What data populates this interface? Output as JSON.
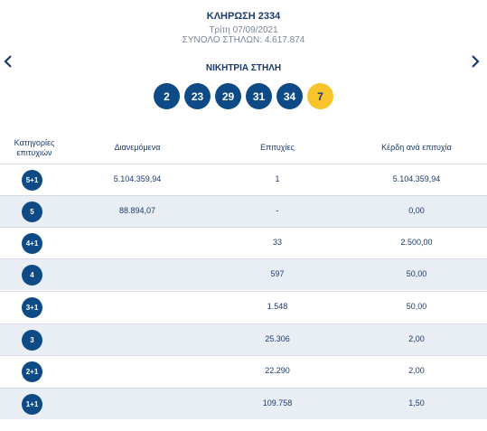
{
  "draw": {
    "title": "ΚΛΗΡΩΣΗ 2334",
    "date": "Τρίτη 07/09/2021",
    "columns": "ΣΥΝΟΛΟ ΣΤΗΛΩΝ: 4.617.874"
  },
  "winning": {
    "title": "ΝΙΚΗΤΡΙΑ ΣΤΗΛΗ",
    "numbers": [
      "2",
      "23",
      "29",
      "31",
      "34"
    ],
    "joker": "7"
  },
  "table": {
    "headers": {
      "category": "Κατηγορίες επιτυχιών",
      "distributed": "Διανεμόμενα",
      "winners": "Επιτυχίες",
      "prize": "Κέρδη ανά επιτυχία"
    },
    "rows": [
      {
        "category": "5+1",
        "distributed": "5.104.359,94",
        "winners": "1",
        "prize": "5.104.359,94"
      },
      {
        "category": "5",
        "distributed": "88.894,07",
        "winners": "-",
        "prize": "0,00"
      },
      {
        "category": "4+1",
        "distributed": "",
        "winners": "33",
        "prize": "2.500,00"
      },
      {
        "category": "4",
        "distributed": "",
        "winners": "597",
        "prize": "50,00"
      },
      {
        "category": "3+1",
        "distributed": "",
        "winners": "1.548",
        "prize": "50,00"
      },
      {
        "category": "3",
        "distributed": "",
        "winners": "25.306",
        "prize": "2,00"
      },
      {
        "category": "2+1",
        "distributed": "",
        "winners": "22.290",
        "prize": "2,00"
      },
      {
        "category": "1+1",
        "distributed": "",
        "winners": "109.758",
        "prize": "1,50"
      }
    ]
  },
  "icons": {
    "prev": "chevron-left-icon",
    "next": "chevron-right-icon"
  },
  "colors": {
    "ball": "#0e4a86",
    "joker": "#f7c42c",
    "row_shade": "#e9edf4"
  }
}
